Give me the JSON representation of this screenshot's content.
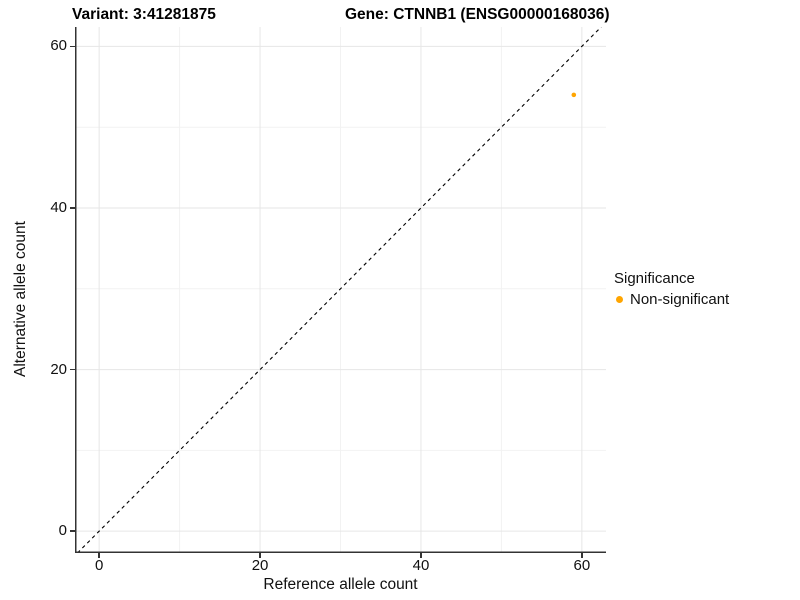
{
  "chart_data": {
    "type": "scatter",
    "title_left": "Variant: 3:41281875",
    "title_right": "Gene: CTNNB1 (ENSG00000168036)",
    "xlabel": "Reference allele count",
    "ylabel": "Alternative allele count",
    "xticks": [
      0,
      20,
      40,
      60
    ],
    "yticks": [
      0,
      20,
      40,
      60
    ],
    "xticks_minor": [
      10,
      30,
      50
    ],
    "yticks_minor": [
      10,
      30,
      50
    ],
    "xlim": [
      -3,
      63
    ],
    "ylim": [
      -2.7,
      62.4
    ],
    "grid": true,
    "points": [
      {
        "x": 59,
        "y": 54,
        "series": "Non-significant"
      }
    ],
    "reference_line": {
      "slope": 1,
      "intercept": 0,
      "style": "dashed",
      "color": "#000000"
    },
    "legend": {
      "title": "Significance",
      "position": "right",
      "items": [
        {
          "label": "Non-significant",
          "color": "#FFA500"
        }
      ]
    },
    "colors": {
      "point": "#FFA500",
      "grid_major": "#E6E6E6",
      "grid_minor": "#F2F2F2",
      "axis_line": "#333333",
      "background": "#FFFFFF"
    }
  }
}
